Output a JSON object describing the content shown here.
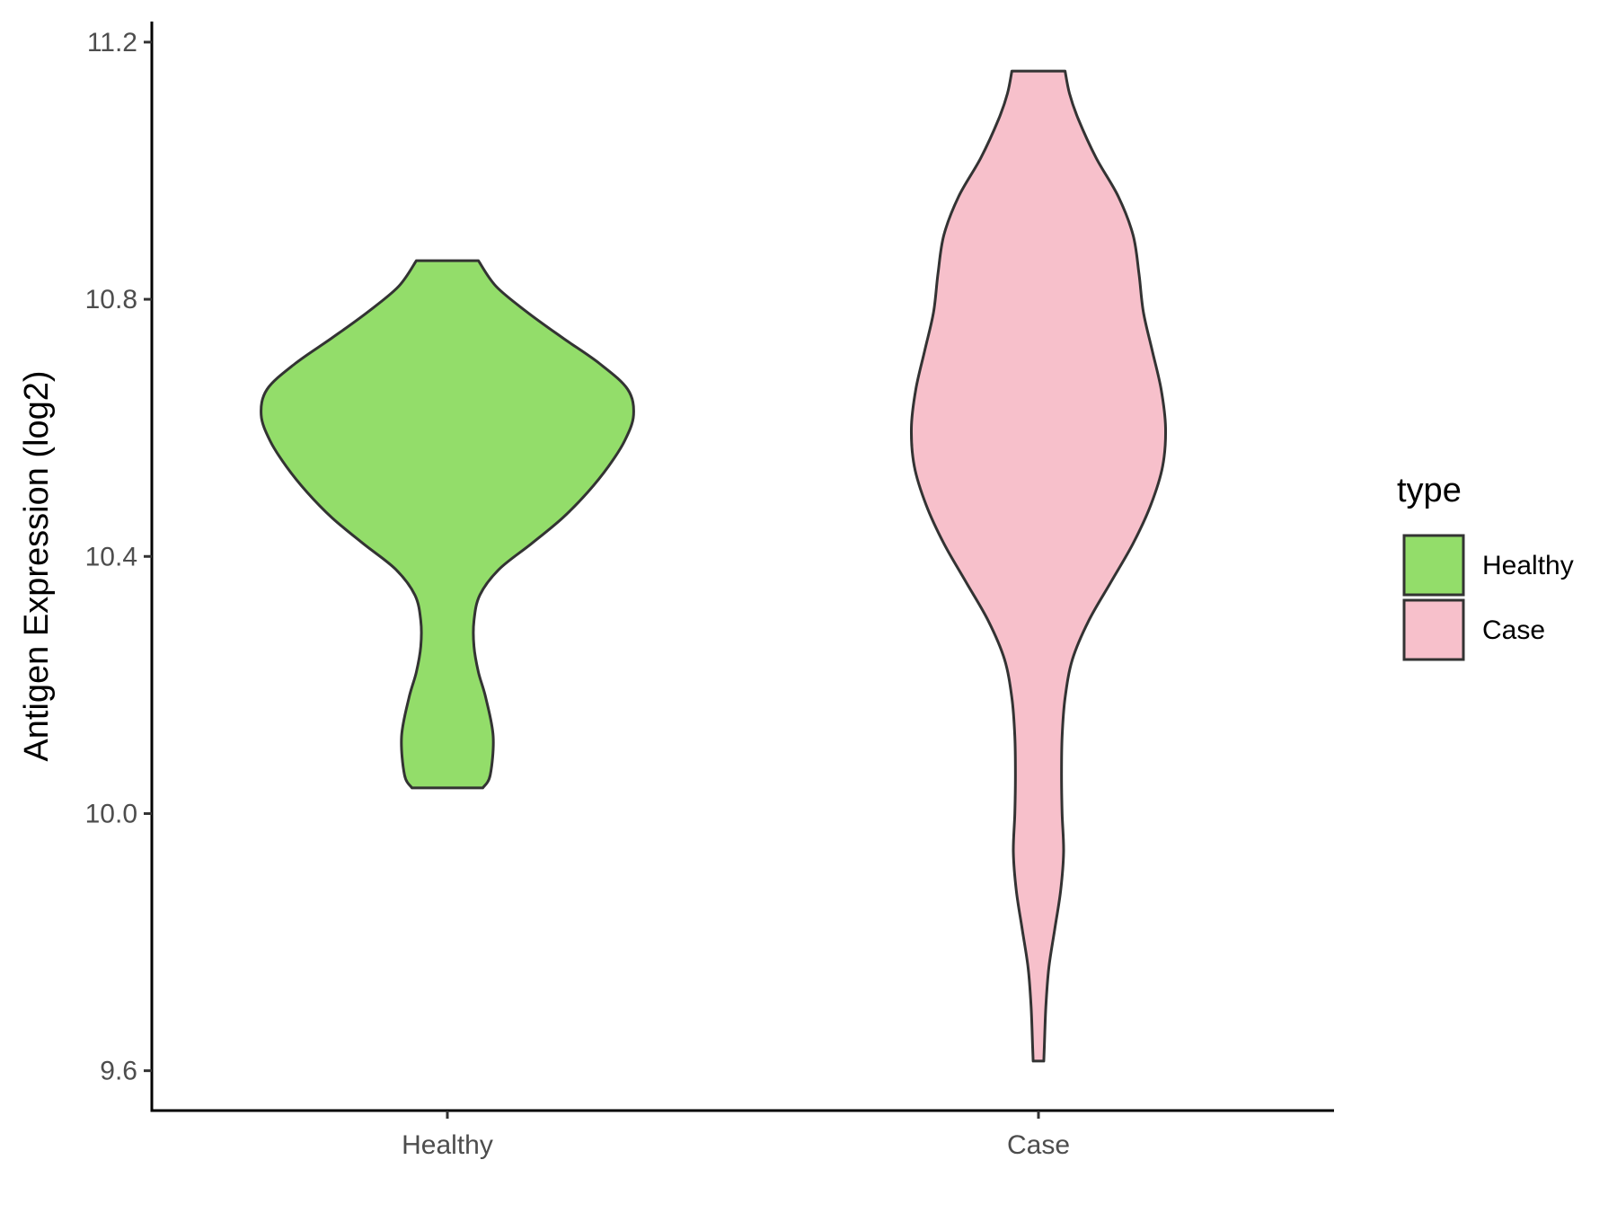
{
  "chart_data": {
    "type": "violin",
    "xlabel": "",
    "ylabel": "Antigen Expression (log2)",
    "ylim": [
      9.538,
      11.232
    ],
    "yticks": [
      {
        "value": 9.6,
        "label": "9.6"
      },
      {
        "value": 10.0,
        "label": "10.0"
      },
      {
        "value": 10.4,
        "label": "10.4"
      },
      {
        "value": 10.8,
        "label": "10.8"
      },
      {
        "value": 11.2,
        "label": "11.2"
      }
    ],
    "categories": [
      "Healthy",
      "Case"
    ],
    "legend": {
      "title": "type",
      "position": "right",
      "entries": [
        "Healthy",
        "Case"
      ]
    },
    "grid": false,
    "series": [
      {
        "name": "Healthy",
        "color": "#93dd6a",
        "min": 10.04,
        "max": 10.86,
        "density": [
          [
            10.04,
            0.12
          ],
          [
            10.06,
            0.145
          ],
          [
            10.12,
            0.155
          ],
          [
            10.18,
            0.13
          ],
          [
            10.22,
            0.105
          ],
          [
            10.26,
            0.09
          ],
          [
            10.3,
            0.09
          ],
          [
            10.34,
            0.11
          ],
          [
            10.38,
            0.175
          ],
          [
            10.42,
            0.285
          ],
          [
            10.46,
            0.39
          ],
          [
            10.5,
            0.475
          ],
          [
            10.54,
            0.545
          ],
          [
            10.58,
            0.6
          ],
          [
            10.62,
            0.63
          ],
          [
            10.66,
            0.61
          ],
          [
            10.7,
            0.515
          ],
          [
            10.74,
            0.39
          ],
          [
            10.78,
            0.27
          ],
          [
            10.82,
            0.165
          ],
          [
            10.86,
            0.105
          ]
        ]
      },
      {
        "name": "Case",
        "color": "#f7c0cb",
        "min": 9.615,
        "max": 11.155,
        "density": [
          [
            9.615,
            0.018
          ],
          [
            9.64,
            0.02
          ],
          [
            9.7,
            0.025
          ],
          [
            9.76,
            0.035
          ],
          [
            9.82,
            0.055
          ],
          [
            9.88,
            0.075
          ],
          [
            9.94,
            0.085
          ],
          [
            10.0,
            0.08
          ],
          [
            10.06,
            0.078
          ],
          [
            10.12,
            0.08
          ],
          [
            10.18,
            0.09
          ],
          [
            10.24,
            0.115
          ],
          [
            10.3,
            0.17
          ],
          [
            10.36,
            0.245
          ],
          [
            10.42,
            0.32
          ],
          [
            10.48,
            0.38
          ],
          [
            10.54,
            0.42
          ],
          [
            10.6,
            0.43
          ],
          [
            10.66,
            0.415
          ],
          [
            10.72,
            0.385
          ],
          [
            10.78,
            0.355
          ],
          [
            10.84,
            0.34
          ],
          [
            10.9,
            0.32
          ],
          [
            10.96,
            0.27
          ],
          [
            11.02,
            0.195
          ],
          [
            11.08,
            0.135
          ],
          [
            11.12,
            0.105
          ],
          [
            11.155,
            0.09
          ]
        ]
      }
    ]
  }
}
